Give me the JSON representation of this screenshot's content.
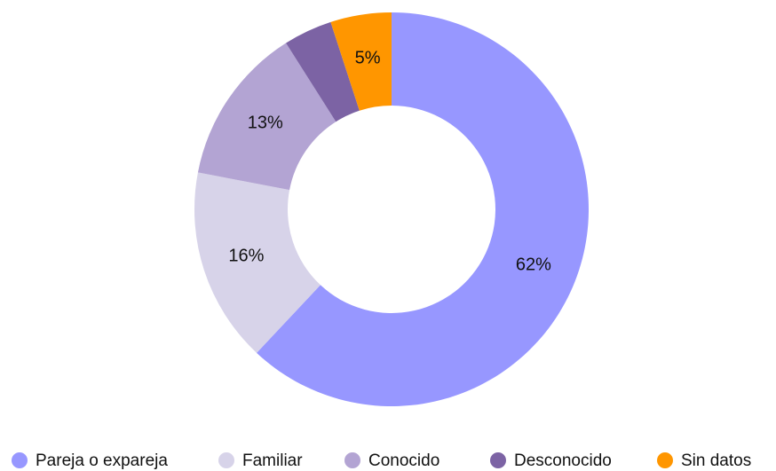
{
  "chart_data": {
    "type": "donut",
    "categories": [
      "Pareja o expareja",
      "Familiar",
      "Conocido",
      "Desconocido",
      "Sin datos"
    ],
    "values": [
      62,
      16,
      13,
      4,
      5
    ],
    "value_labels": [
      "62%",
      "16%",
      "13%",
      null,
      "5%"
    ],
    "colors": [
      "#9797ff",
      "#d7d3e9",
      "#b3a4d3",
      "#7c63a4",
      "#ff9600"
    ],
    "legend": "bottom"
  }
}
